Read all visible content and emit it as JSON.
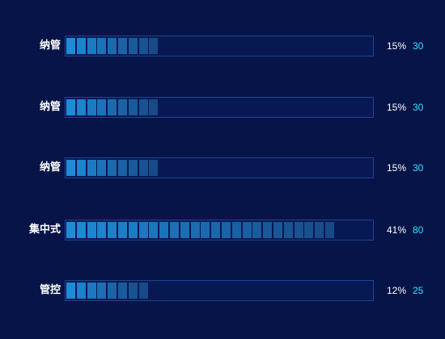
{
  "chart_data": {
    "type": "bar",
    "orientation": "horizontal",
    "categories": [
      "纳管",
      "纳管",
      "纳管",
      "集中式",
      "管控"
    ],
    "percent_labels": [
      "15%",
      "15%",
      "15%",
      "41%",
      "12%"
    ],
    "percent_values": [
      15,
      15,
      15,
      41,
      12
    ],
    "values": [
      30,
      30,
      30,
      80,
      25
    ],
    "xlim": [
      0,
      100
    ],
    "segmented": true,
    "title": "",
    "xlabel": "",
    "ylabel": ""
  },
  "colors": {
    "background": "#061448",
    "track_border": "#1d4590",
    "segment_start": "#1f8ad6",
    "segment_end": "#174a86",
    "percent_text": "#ffffff",
    "value_text": "#3de0ff",
    "category_text": "#ffffff"
  }
}
